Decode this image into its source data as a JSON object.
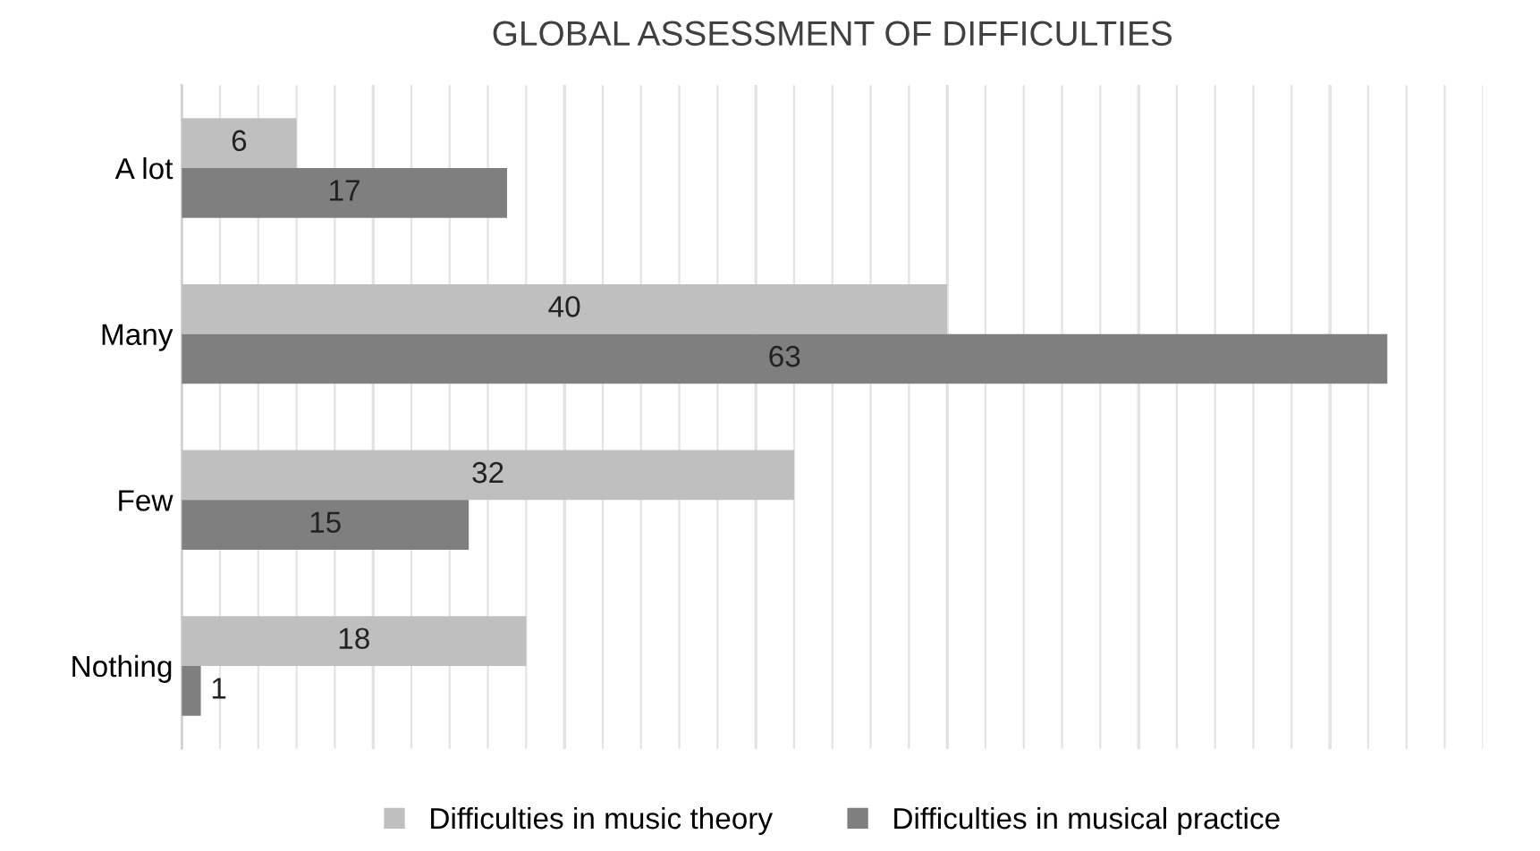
{
  "chart_data": {
    "type": "bar",
    "orientation": "horizontal",
    "title": "GLOBAL ASSESSMENT OF DIFFICULTIES",
    "categories": [
      "A lot",
      "Many",
      "Few",
      "Nothing"
    ],
    "series": [
      {
        "name": "Difficulties in music theory",
        "color": "#bfbfbf",
        "values": [
          6,
          40,
          32,
          18
        ]
      },
      {
        "name": "Difficulties in musical practice",
        "color": "#7f7f7f",
        "values": [
          17,
          63,
          15,
          1
        ]
      }
    ],
    "xlim": [
      0,
      68
    ],
    "xticks": [
      {
        "value": 0,
        "label": null
      },
      {
        "value": 2,
        "label": null
      },
      {
        "value": 4,
        "label": null
      },
      {
        "value": 6,
        "label": null
      },
      {
        "value": 8,
        "label": null
      },
      {
        "value": 10,
        "label": null
      },
      {
        "value": 12,
        "label": null
      },
      {
        "value": 14,
        "label": null
      },
      {
        "value": 16,
        "label": null
      },
      {
        "value": 18,
        "label": null
      },
      {
        "value": 20,
        "label": null
      },
      {
        "value": 22,
        "label": null
      },
      {
        "value": 24,
        "label": null
      },
      {
        "value": 26,
        "label": null
      },
      {
        "value": 28,
        "label": null
      },
      {
        "value": 30,
        "label": null
      },
      {
        "value": 32,
        "label": null
      },
      {
        "value": 34,
        "label": null
      },
      {
        "value": 36,
        "label": null
      },
      {
        "value": 38,
        "label": null
      },
      {
        "value": 40,
        "label": null
      },
      {
        "value": 42,
        "label": null
      },
      {
        "value": 44,
        "label": null
      },
      {
        "value": 46,
        "label": null
      },
      {
        "value": 48,
        "label": null
      },
      {
        "value": 50,
        "label": null
      },
      {
        "value": 52,
        "label": null
      },
      {
        "value": 54,
        "label": null
      },
      {
        "value": 56,
        "label": null
      },
      {
        "value": 58,
        "label": null
      },
      {
        "value": 60,
        "label": null
      },
      {
        "value": 62,
        "label": null
      },
      {
        "value": 64,
        "label": null
      },
      {
        "value": 66,
        "label": null
      },
      {
        "value": 68,
        "label": null
      }
    ],
    "grid": "x",
    "legend": "bottom",
    "data_labels": true,
    "tick_labels": "y"
  }
}
